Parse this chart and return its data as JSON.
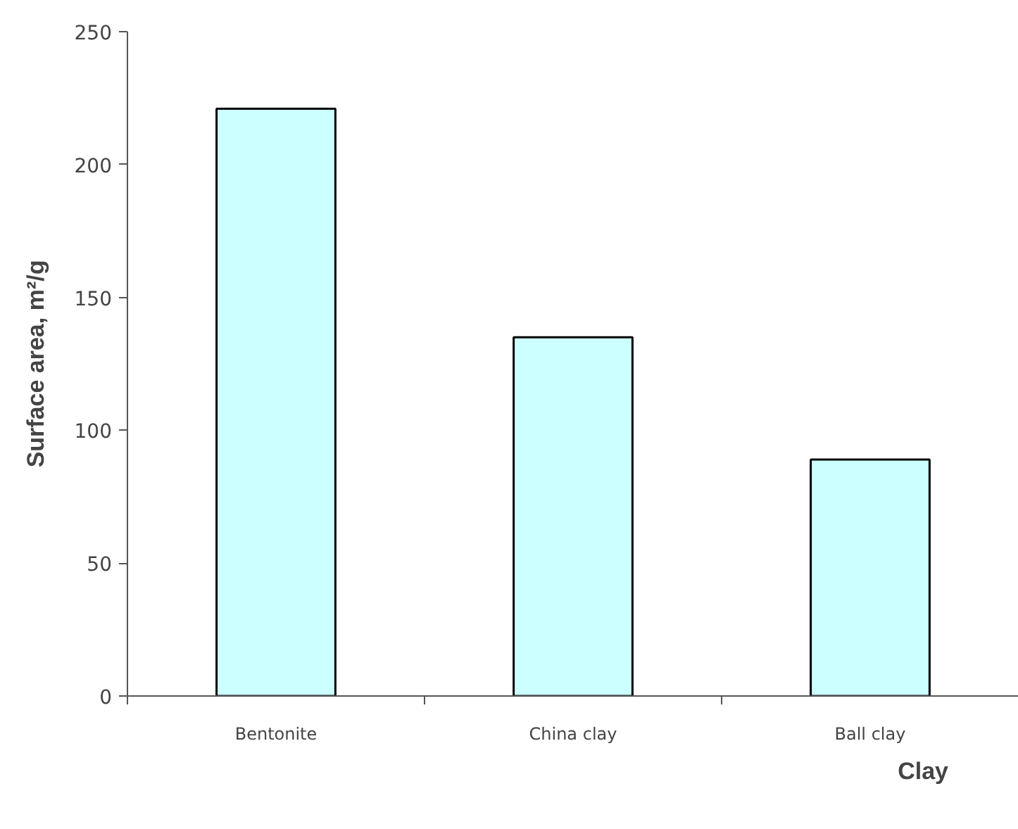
{
  "chart_data": {
    "type": "bar",
    "categories": [
      "Bentonite",
      "China clay",
      "Ball clay"
    ],
    "values": [
      221,
      135,
      89
    ],
    "color": "#ccffff",
    "xlabel": "Clay",
    "ylabel": "Surface area, m²/g",
    "ylim": [
      0,
      250
    ],
    "yticks": [
      0,
      50,
      100,
      150,
      200,
      250
    ],
    "grid": false
  }
}
